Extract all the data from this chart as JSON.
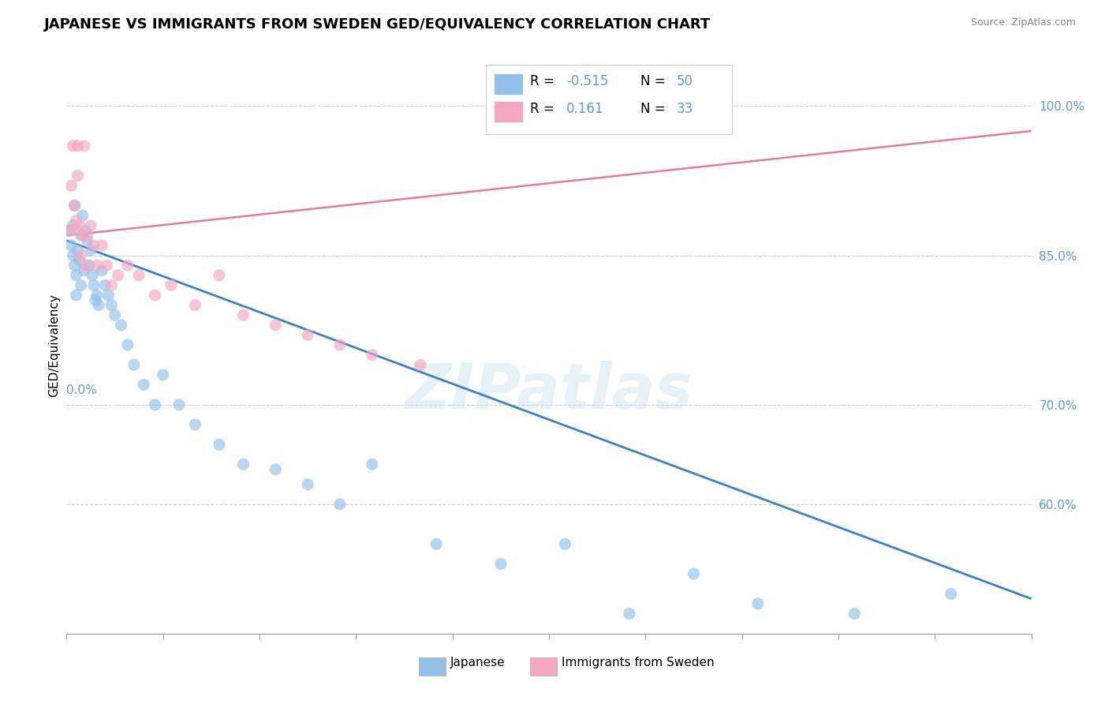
{
  "title": "JAPANESE VS IMMIGRANTS FROM SWEDEN GED/EQUIVALENCY CORRELATION CHART",
  "source_text": "Source: ZipAtlas.com",
  "ylabel": "GED/Equivalency",
  "ytick_labels": [
    "60.0%",
    "70.0%",
    "85.0%",
    "100.0%"
  ],
  "ytick_values": [
    0.6,
    0.7,
    0.85,
    1.0
  ],
  "xmin": 0.0,
  "xmax": 0.6,
  "ymin": 0.47,
  "ymax": 1.05,
  "blue_scatter_x": [
    0.002,
    0.003,
    0.004,
    0.004,
    0.005,
    0.005,
    0.006,
    0.006,
    0.007,
    0.008,
    0.009,
    0.009,
    0.01,
    0.011,
    0.012,
    0.013,
    0.014,
    0.015,
    0.016,
    0.017,
    0.018,
    0.019,
    0.02,
    0.022,
    0.024,
    0.026,
    0.028,
    0.03,
    0.034,
    0.038,
    0.042,
    0.048,
    0.055,
    0.06,
    0.07,
    0.08,
    0.095,
    0.11,
    0.13,
    0.15,
    0.17,
    0.19,
    0.23,
    0.27,
    0.31,
    0.35,
    0.39,
    0.43,
    0.49,
    0.55
  ],
  "blue_scatter_y": [
    0.875,
    0.86,
    0.88,
    0.85,
    0.9,
    0.84,
    0.83,
    0.81,
    0.855,
    0.845,
    0.87,
    0.82,
    0.89,
    0.835,
    0.875,
    0.865,
    0.84,
    0.855,
    0.83,
    0.82,
    0.805,
    0.81,
    0.8,
    0.835,
    0.82,
    0.81,
    0.8,
    0.79,
    0.78,
    0.76,
    0.74,
    0.72,
    0.7,
    0.73,
    0.7,
    0.68,
    0.66,
    0.64,
    0.635,
    0.62,
    0.6,
    0.64,
    0.56,
    0.54,
    0.56,
    0.49,
    0.53,
    0.5,
    0.49,
    0.51
  ],
  "pink_scatter_x": [
    0.002,
    0.003,
    0.004,
    0.005,
    0.006,
    0.006,
    0.007,
    0.007,
    0.008,
    0.009,
    0.01,
    0.011,
    0.012,
    0.013,
    0.015,
    0.017,
    0.019,
    0.022,
    0.025,
    0.028,
    0.032,
    0.038,
    0.045,
    0.055,
    0.065,
    0.08,
    0.095,
    0.11,
    0.13,
    0.15,
    0.17,
    0.19,
    0.22
  ],
  "pink_scatter_y": [
    0.875,
    0.92,
    0.96,
    0.9,
    0.885,
    0.875,
    0.96,
    0.93,
    0.88,
    0.85,
    0.87,
    0.96,
    0.84,
    0.87,
    0.88,
    0.86,
    0.84,
    0.86,
    0.84,
    0.82,
    0.83,
    0.84,
    0.83,
    0.81,
    0.82,
    0.8,
    0.83,
    0.79,
    0.78,
    0.77,
    0.76,
    0.75,
    0.74
  ],
  "blue_line_x": [
    0.0,
    0.6
  ],
  "blue_line_y": [
    0.865,
    0.505
  ],
  "pink_line_x": [
    0.0,
    0.6
  ],
  "pink_line_y": [
    0.87,
    0.975
  ],
  "watermark": "ZIPatlas",
  "title_fontsize": 13,
  "axis_label_fontsize": 11,
  "tick_fontsize": 11,
  "bg_color": "#ffffff",
  "grid_color": "#cccccc",
  "blue_dot_color": "#92C0E8",
  "pink_dot_color": "#F4A8C0",
  "blue_line_color": "#3B82C4",
  "pink_line_color": "#E87A9A",
  "right_tick_color": "#5B9BD5"
}
